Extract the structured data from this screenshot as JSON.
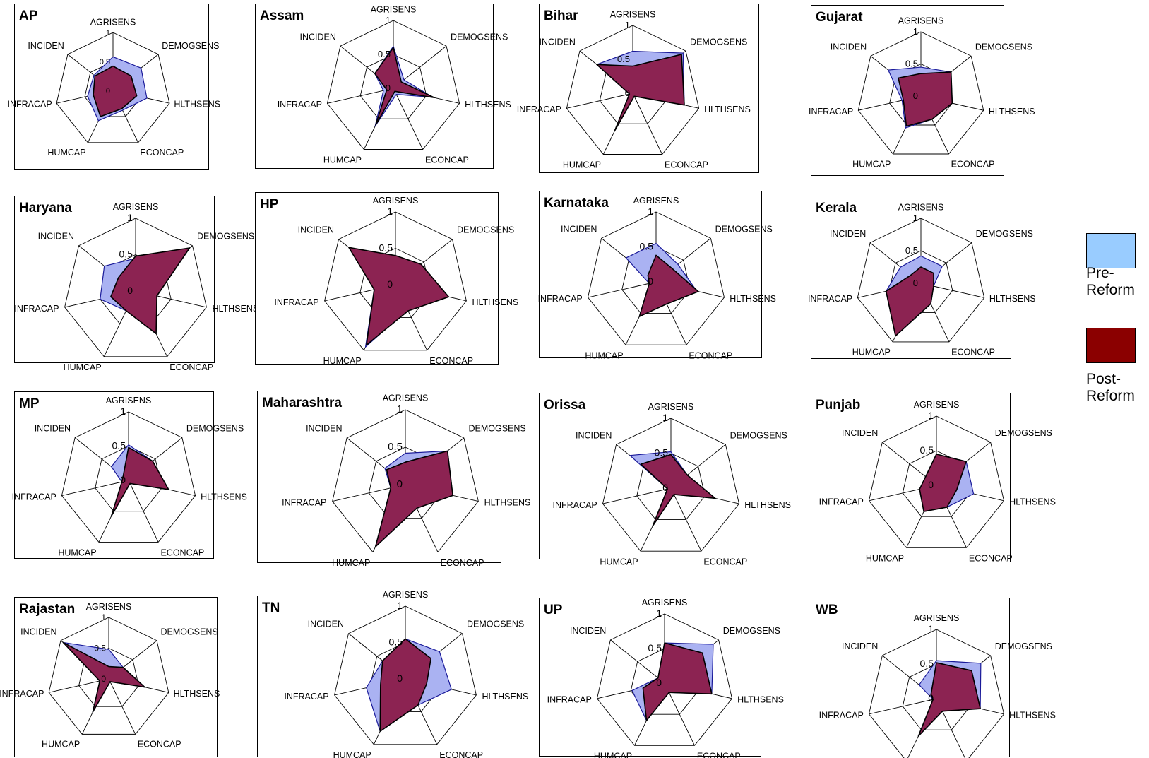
{
  "chart_data": {
    "type": "radar",
    "axes": [
      "AGRISENS",
      "DEMOGSENS",
      "HLTHSENS",
      "ECONCAP",
      "HUMCAP",
      "INFRACAP",
      "INCIDEN"
    ],
    "tick_labels": [
      "0",
      "0.5",
      "1"
    ],
    "range": [
      0,
      1
    ],
    "legend": {
      "placement": "right",
      "entries": [
        {
          "label": "Pre-Reform",
          "line1": "Pre-",
          "line2": "Reform",
          "color": "#99ccff"
        },
        {
          "label": "Post-Reform",
          "line1": "Post-",
          "line2": "Reform",
          "color": "#8b0000"
        }
      ]
    },
    "colors": {
      "pre_fill": "#aab2f2",
      "pre_stroke": "#1a1a99",
      "post_fill": "#8c2352",
      "post_stroke": "#000000"
    },
    "panels": [
      {
        "title": "AP",
        "pre": [
          0.58,
          0.62,
          0.6,
          0.38,
          0.58,
          0.45,
          0.42
        ],
        "post": [
          0.42,
          0.4,
          0.42,
          0.35,
          0.5,
          0.35,
          0.4
        ]
      },
      {
        "title": "Assam",
        "pre": [
          0.62,
          0.2,
          0.6,
          0.1,
          0.62,
          0.15,
          0.35
        ],
        "post": [
          0.6,
          0.15,
          0.62,
          0.05,
          0.6,
          0.1,
          0.35
        ]
      },
      {
        "title": "Bihar",
        "pre": [
          0.62,
          0.95,
          0.78,
          0.05,
          0.62,
          0.05,
          0.68
        ],
        "post": [
          0.4,
          0.92,
          0.78,
          0.05,
          0.62,
          0.05,
          0.68
        ]
      },
      {
        "title": "Gujarat",
        "pre": [
          0.45,
          0.6,
          0.5,
          0.4,
          0.55,
          0.3,
          0.65
        ],
        "post": [
          0.35,
          0.6,
          0.5,
          0.4,
          0.52,
          0.28,
          0.45
        ]
      },
      {
        "title": "Haryana",
        "pre": [
          0.45,
          0.95,
          0.3,
          0.65,
          0.3,
          0.5,
          0.55
        ],
        "post": [
          0.48,
          0.95,
          0.3,
          0.65,
          0.3,
          0.35,
          0.3
        ]
      },
      {
        "title": "HP",
        "pre": [
          0.38,
          0.42,
          0.72,
          0.38,
          0.95,
          0.3,
          0.45
        ],
        "post": [
          0.4,
          0.45,
          0.75,
          0.4,
          0.92,
          0.3,
          0.82
        ]
      },
      {
        "title": "Karnataka",
        "pre": [
          0.55,
          0.4,
          0.6,
          0.25,
          0.55,
          0.1,
          0.55
        ],
        "post": [
          0.38,
          0.3,
          0.62,
          0.35,
          0.55,
          0.1,
          0.15
        ]
      },
      {
        "title": "Kerala",
        "pre": [
          0.42,
          0.42,
          0.2,
          0.35,
          0.9,
          0.55,
          0.4
        ],
        "post": [
          0.25,
          0.25,
          0.2,
          0.35,
          0.9,
          0.55,
          0.2
        ]
      },
      {
        "title": "MP",
        "pre": [
          0.52,
          0.45,
          0.6,
          0.05,
          0.58,
          0.1,
          0.32
        ],
        "post": [
          0.48,
          0.45,
          0.6,
          0.05,
          0.58,
          0.1,
          0.1
        ]
      },
      {
        "title": "Maharashtra",
        "pre": [
          0.42,
          0.72,
          0.65,
          0.35,
          0.92,
          0.2,
          0.35
        ],
        "post": [
          0.3,
          0.72,
          0.65,
          0.35,
          0.92,
          0.2,
          0.32
        ]
      },
      {
        "title": "Orissa",
        "pre": [
          0.52,
          0.3,
          0.65,
          0.1,
          0.6,
          0.05,
          0.75
        ],
        "post": [
          0.48,
          0.3,
          0.65,
          0.1,
          0.6,
          0.05,
          0.55
        ]
      },
      {
        "title": "Punjab",
        "pre": [
          0.45,
          0.55,
          0.55,
          0.35,
          0.42,
          0.25,
          0.2
        ],
        "post": [
          0.45,
          0.55,
          0.3,
          0.35,
          0.42,
          0.25,
          0.2
        ]
      },
      {
        "title": "Rajastan",
        "pre": [
          0.48,
          0.3,
          0.6,
          0.05,
          0.6,
          0.15,
          0.95
        ],
        "post": [
          0.2,
          0.3,
          0.6,
          0.05,
          0.6,
          0.15,
          0.95
        ]
      },
      {
        "title": "TN",
        "pre": [
          0.55,
          0.6,
          0.65,
          0.4,
          0.8,
          0.55,
          0.4
        ],
        "post": [
          0.55,
          0.45,
          0.3,
          0.4,
          0.8,
          0.35,
          0.4
        ]
      },
      {
        "title": "UP",
        "pre": [
          0.58,
          0.9,
          0.7,
          0.15,
          0.6,
          0.48,
          0.12
        ],
        "post": [
          0.58,
          0.7,
          0.7,
          0.15,
          0.6,
          0.32,
          0.12
        ]
      },
      {
        "title": "WB",
        "pre": [
          0.55,
          0.82,
          0.65,
          0.2,
          0.6,
          0.05,
          0.32
        ],
        "post": [
          0.52,
          0.65,
          0.65,
          0.2,
          0.6,
          0.05,
          0.1
        ]
      }
    ]
  }
}
